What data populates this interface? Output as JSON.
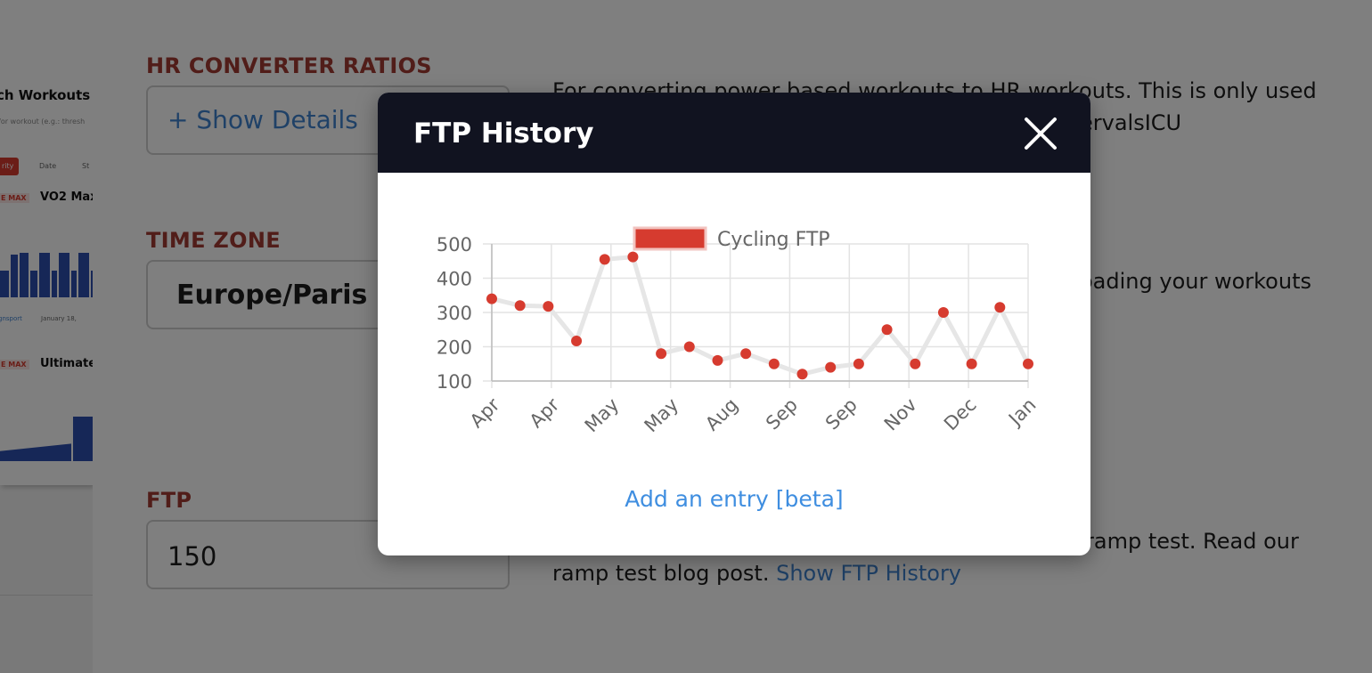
{
  "background": {
    "preview": {
      "title": "ch Workouts",
      "subtitle": "for workout (e.g.: thresh",
      "tabs": [
        "rity",
        "Date",
        "St"
      ],
      "workouts": [
        {
          "badge": "E MAX",
          "name": "VO2 Max"
        },
        {
          "badge": "E MAX",
          "name": "Ultimate"
        }
      ],
      "footer_left": "gnsport",
      "footer_right": "January 18,"
    },
    "sections": {
      "hr_converter": {
        "label": "HR CONVERTER RATIOS",
        "toggle": "+ Show Details",
        "description_line1": "For converting power based workouts to HR workouts. This is only used",
        "description_line2": "ervalsICU"
      },
      "time_zone": {
        "label": "TIME ZONE",
        "value": "Europe/Paris (G",
        "description": "oading your workouts"
      },
      "ftp": {
        "label": "FTP",
        "value": "150",
        "description_line1": "ramp test. Read our",
        "description_line2": "ramp test blog post.",
        "history_link": "Show FTP History"
      }
    }
  },
  "modal": {
    "title": "FTP History",
    "close_icon": "close-icon",
    "add_entry": "Add an entry [beta]"
  },
  "colors": {
    "label_red": "#a33a32",
    "link_blue": "#3f82cf",
    "modal_header": "#111320",
    "point_red": "#d63b2f"
  },
  "chart_data": {
    "type": "line",
    "legend": [
      "Cycling FTP"
    ],
    "legend_position": "top",
    "ylim": [
      100,
      500
    ],
    "yticks": [
      100,
      200,
      300,
      400,
      500
    ],
    "x_tick_labels": [
      "Apr",
      "Apr",
      "May",
      "May",
      "Aug",
      "Sep",
      "Sep",
      "Nov",
      "Dec",
      "Jan"
    ],
    "grid": true,
    "series": [
      {
        "name": "Cycling FTP",
        "color": "#d63b2f",
        "line_color": "#e6e6e6",
        "values": [
          340,
          320,
          318,
          217,
          455,
          462,
          180,
          200,
          160,
          180,
          150,
          120,
          140,
          150,
          250,
          150,
          300,
          150,
          315,
          150
        ]
      }
    ]
  }
}
